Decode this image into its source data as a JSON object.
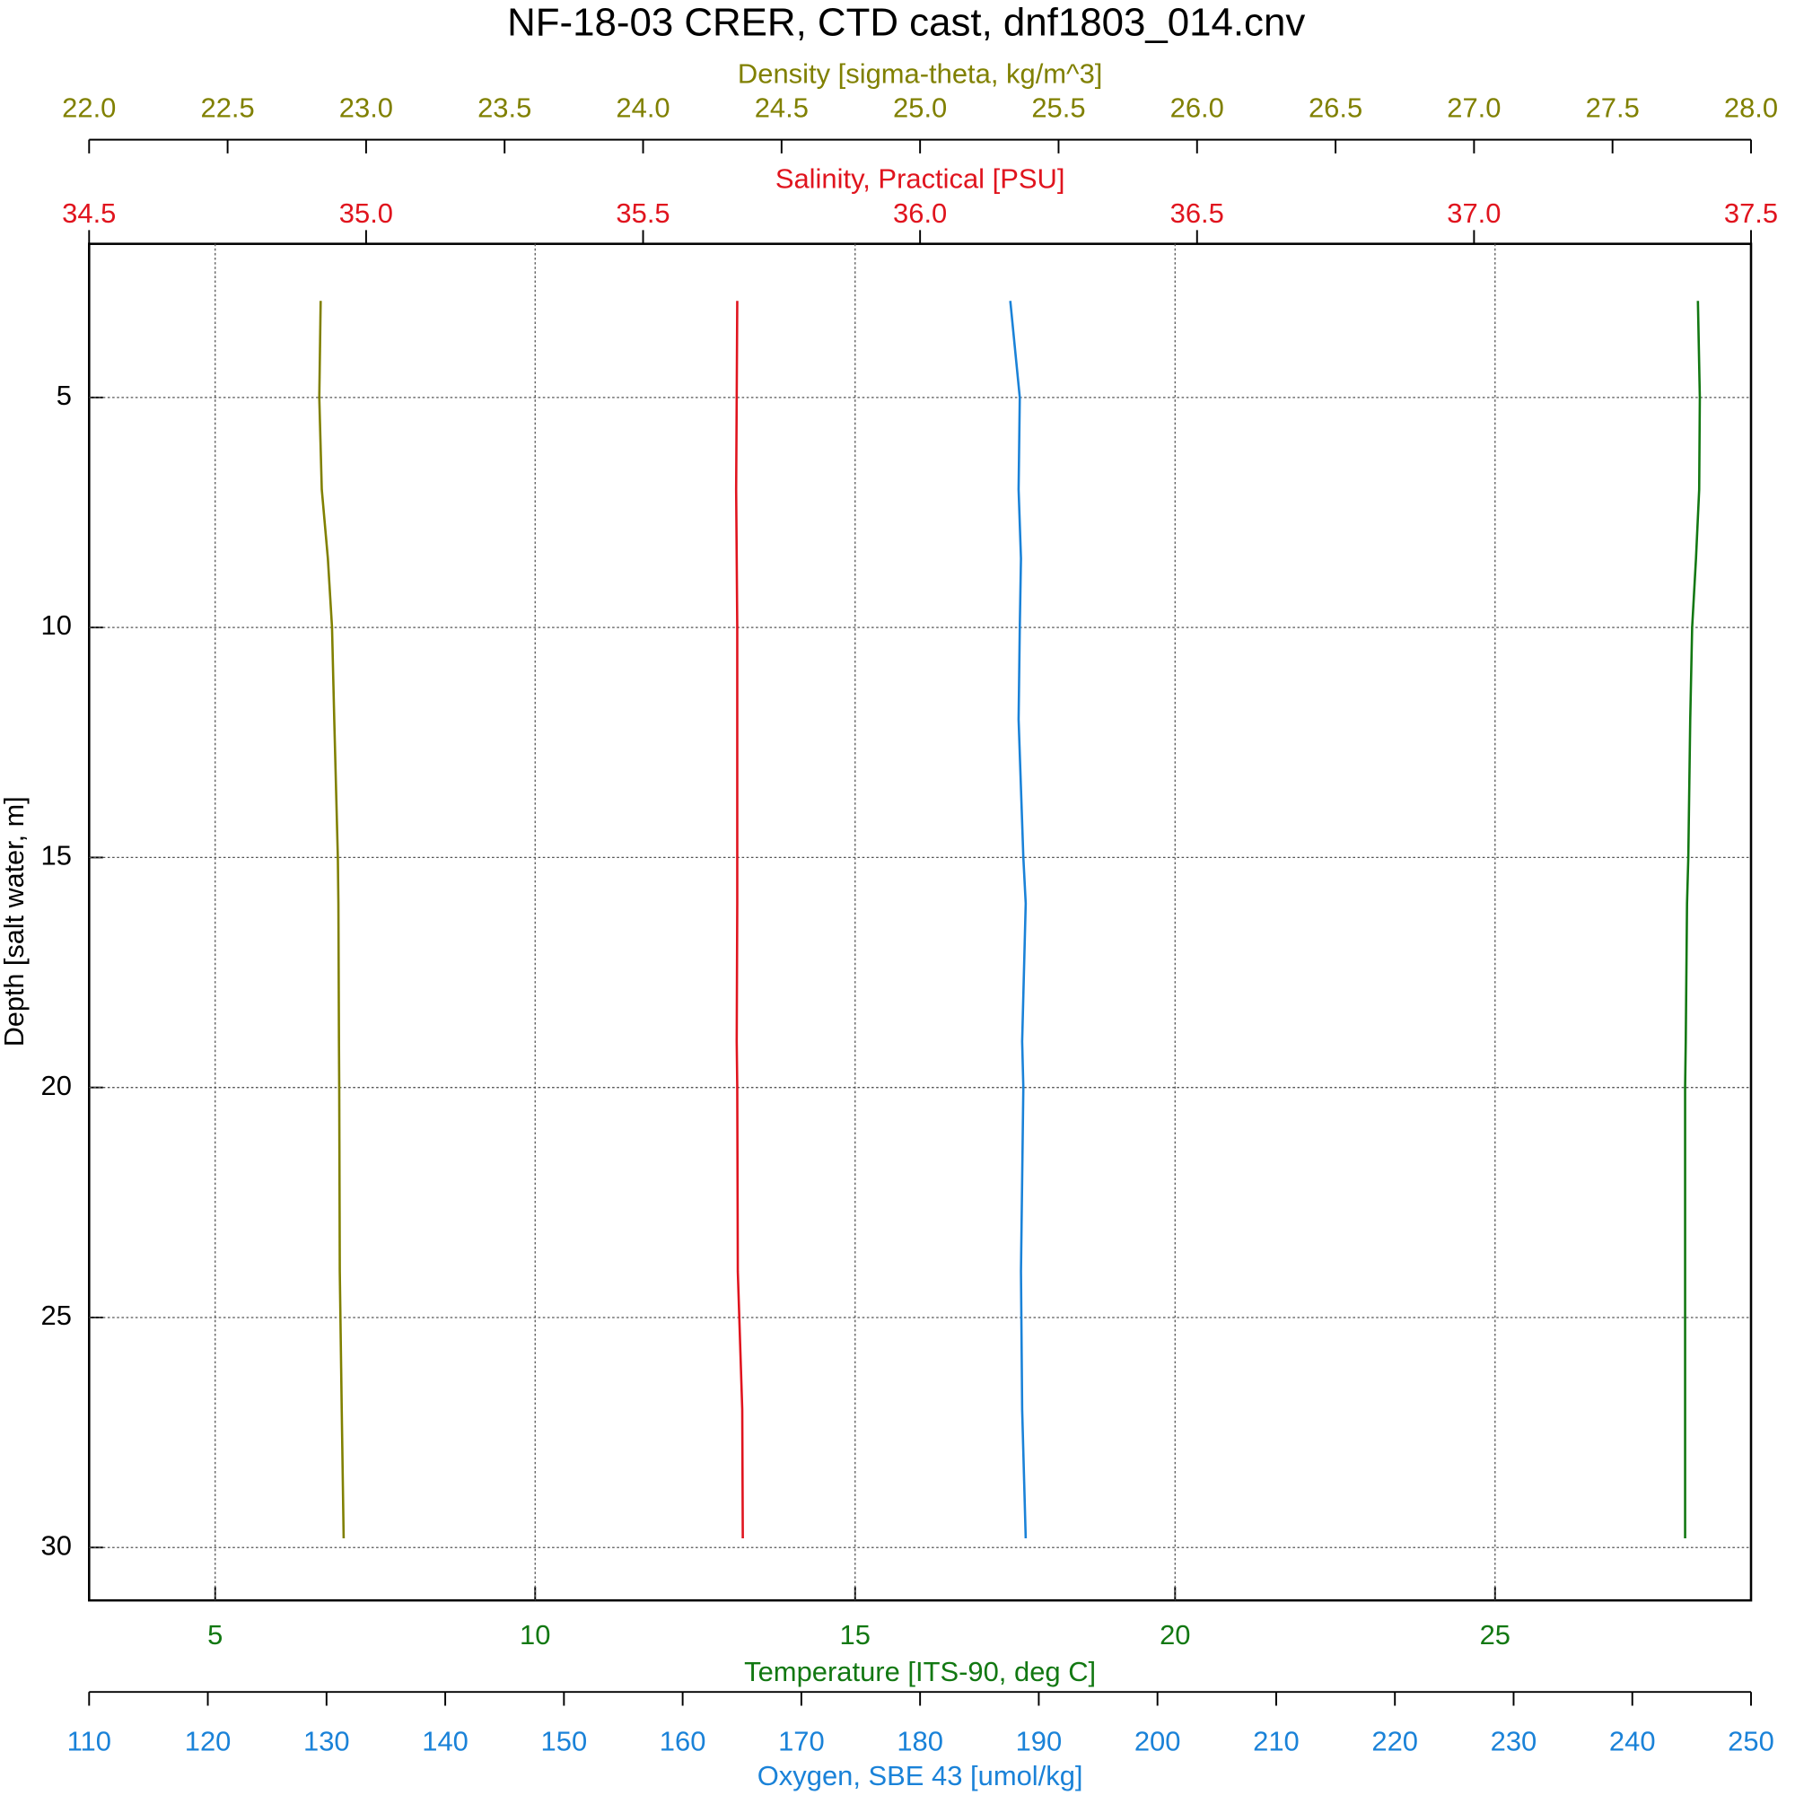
{
  "chart_data": {
    "type": "line",
    "title": "NF-18-03 CRER, CTD cast, dnf1803_014.cnv",
    "ylabel": "Depth [salt water, m]",
    "ylim": [
      1.66,
      31.15
    ],
    "yticks": [
      5,
      10,
      15,
      20,
      25,
      30
    ],
    "y": [
      2.9,
      5,
      7,
      8.5,
      10,
      12,
      15,
      16,
      19,
      20,
      24,
      27,
      29.8
    ],
    "series": [
      {
        "name": "Density [sigma-theta, kg/m^3]",
        "color": "#808000",
        "values": [
          22.836,
          22.831,
          22.84,
          22.862,
          22.877,
          22.885,
          22.898,
          22.9,
          22.902,
          22.903,
          22.905,
          22.912,
          22.919
        ],
        "xlim": [
          22.0,
          28.0
        ],
        "xticks": [
          {
            "value": 22,
            "label": "22.0"
          },
          22.5,
          {
            "value": 23,
            "label": "23.0"
          },
          23.5,
          {
            "value": 24,
            "label": "24.0"
          },
          24.5,
          {
            "value": 25,
            "label": "25.0"
          },
          25.5,
          {
            "value": 26,
            "label": "26.0"
          },
          26.5,
          {
            "value": 27,
            "label": "27.0"
          },
          27.5,
          {
            "value": 28,
            "label": "28.0"
          }
        ]
      },
      {
        "name": "Salinity, Practical [PSU]",
        "color": "#e0141e",
        "values": [
          35.67,
          35.669,
          35.668,
          35.669,
          35.67,
          35.67,
          35.67,
          35.67,
          35.669,
          35.67,
          35.671,
          35.679,
          35.68
        ],
        "xlim": [
          34.5,
          37.5
        ],
        "xticks": [
          34.5,
          {
            "value": 35,
            "label": "35.0"
          },
          35.5,
          {
            "value": 36,
            "label": "36.0"
          },
          36.5,
          {
            "value": 37,
            "label": "37.0"
          },
          37.5
        ]
      },
      {
        "name": "Temperature [ITS-90, deg C]",
        "color": "#127812",
        "values": [
          28.17,
          28.2,
          28.19,
          28.14,
          28.08,
          28.05,
          28.02,
          28.0,
          27.98,
          27.97,
          27.97,
          27.97,
          27.97
        ],
        "xlim": [
          3.03,
          29.0
        ],
        "xticks": [
          5,
          10,
          15,
          20,
          25
        ],
        "grid": true
      },
      {
        "name": "Oxygen, SBE 43 [umol/kg]",
        "color": "#1a82d8",
        "values": [
          187.6,
          188.4,
          188.3,
          188.5,
          188.4,
          188.3,
          188.7,
          188.9,
          188.6,
          188.7,
          188.5,
          188.6,
          188.9
        ],
        "xlim": [
          110,
          250
        ],
        "xticks": [
          110,
          120,
          130,
          140,
          150,
          160,
          170,
          180,
          190,
          200,
          210,
          220,
          230,
          240,
          250
        ]
      }
    ]
  }
}
